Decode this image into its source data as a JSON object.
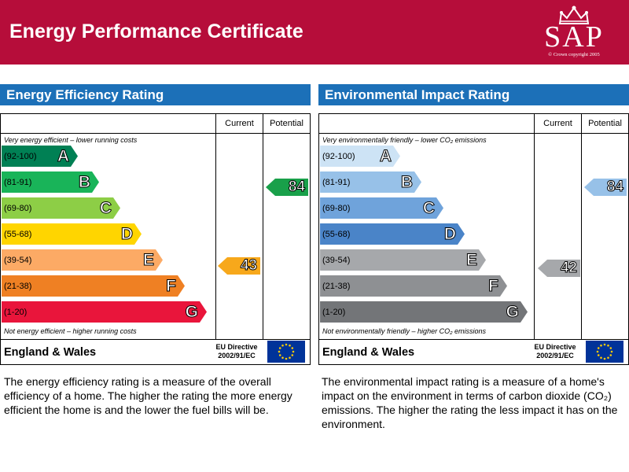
{
  "header": {
    "title": "Energy Performance Certificate",
    "logo_text": "SAP",
    "logo_copyright": "© Crown copyright 2005",
    "color": "#b60d3a"
  },
  "columns": {
    "current": "Current",
    "potential": "Potential"
  },
  "efficiency": {
    "title": "Energy Efficiency Rating",
    "top_caption": "Very energy efficient – lower running costs",
    "bottom_caption": "Not energy efficient – higher running costs",
    "bands": [
      {
        "range": "(92-100)",
        "letter": "A",
        "color": "#008054"
      },
      {
        "range": "(81-91)",
        "letter": "B",
        "color": "#19b459"
      },
      {
        "range": "(69-80)",
        "letter": "C",
        "color": "#8dce46"
      },
      {
        "range": "(55-68)",
        "letter": "D",
        "color": "#ffd500"
      },
      {
        "range": "(39-54)",
        "letter": "E",
        "color": "#fcaa65"
      },
      {
        "range": "(21-38)",
        "letter": "F",
        "color": "#ef8023"
      },
      {
        "range": "(1-20)",
        "letter": "G",
        "color": "#e9153b"
      }
    ],
    "current": {
      "value": "43",
      "color": "#f7a81b",
      "band": "E"
    },
    "potential": {
      "value": "84",
      "color": "#19a04a",
      "band": "B"
    },
    "region": "England & Wales",
    "directive_line1": "EU Directive",
    "directive_line2": "2002/91/EC",
    "description": "The energy efficiency rating is a measure of the overall efficiency of a home. The higher the rating the more energy efficient the home is and the lower the fuel bills will be."
  },
  "environmental": {
    "title": "Environmental Impact Rating",
    "top_caption": "Very environmentally friendly – lower CO₂ emissions",
    "bottom_caption": "Not environmentally friendly – higher CO₂ emissions",
    "bands": [
      {
        "range": "(92-100)",
        "letter": "A",
        "color": "#cde3f5"
      },
      {
        "range": "(81-91)",
        "letter": "B",
        "color": "#97c1e8"
      },
      {
        "range": "(69-80)",
        "letter": "C",
        "color": "#6fa3db"
      },
      {
        "range": "(55-68)",
        "letter": "D",
        "color": "#4a84c8"
      },
      {
        "range": "(39-54)",
        "letter": "E",
        "color": "#a6a8ab"
      },
      {
        "range": "(21-38)",
        "letter": "F",
        "color": "#8e9093"
      },
      {
        "range": "(1-20)",
        "letter": "G",
        "color": "#737578"
      }
    ],
    "current": {
      "value": "42",
      "color": "#a6a8ab",
      "band": "E"
    },
    "potential": {
      "value": "84",
      "color": "#97c1e8",
      "band": "B"
    },
    "region": "England & Wales",
    "directive_line1": "EU Directive",
    "directive_line2": "2002/91/EC",
    "description": "The environmental impact rating is a measure of a home's impact on the environment in terms of carbon dioxide (CO₂) emissions. The higher the rating the less impact it has on the environment."
  }
}
